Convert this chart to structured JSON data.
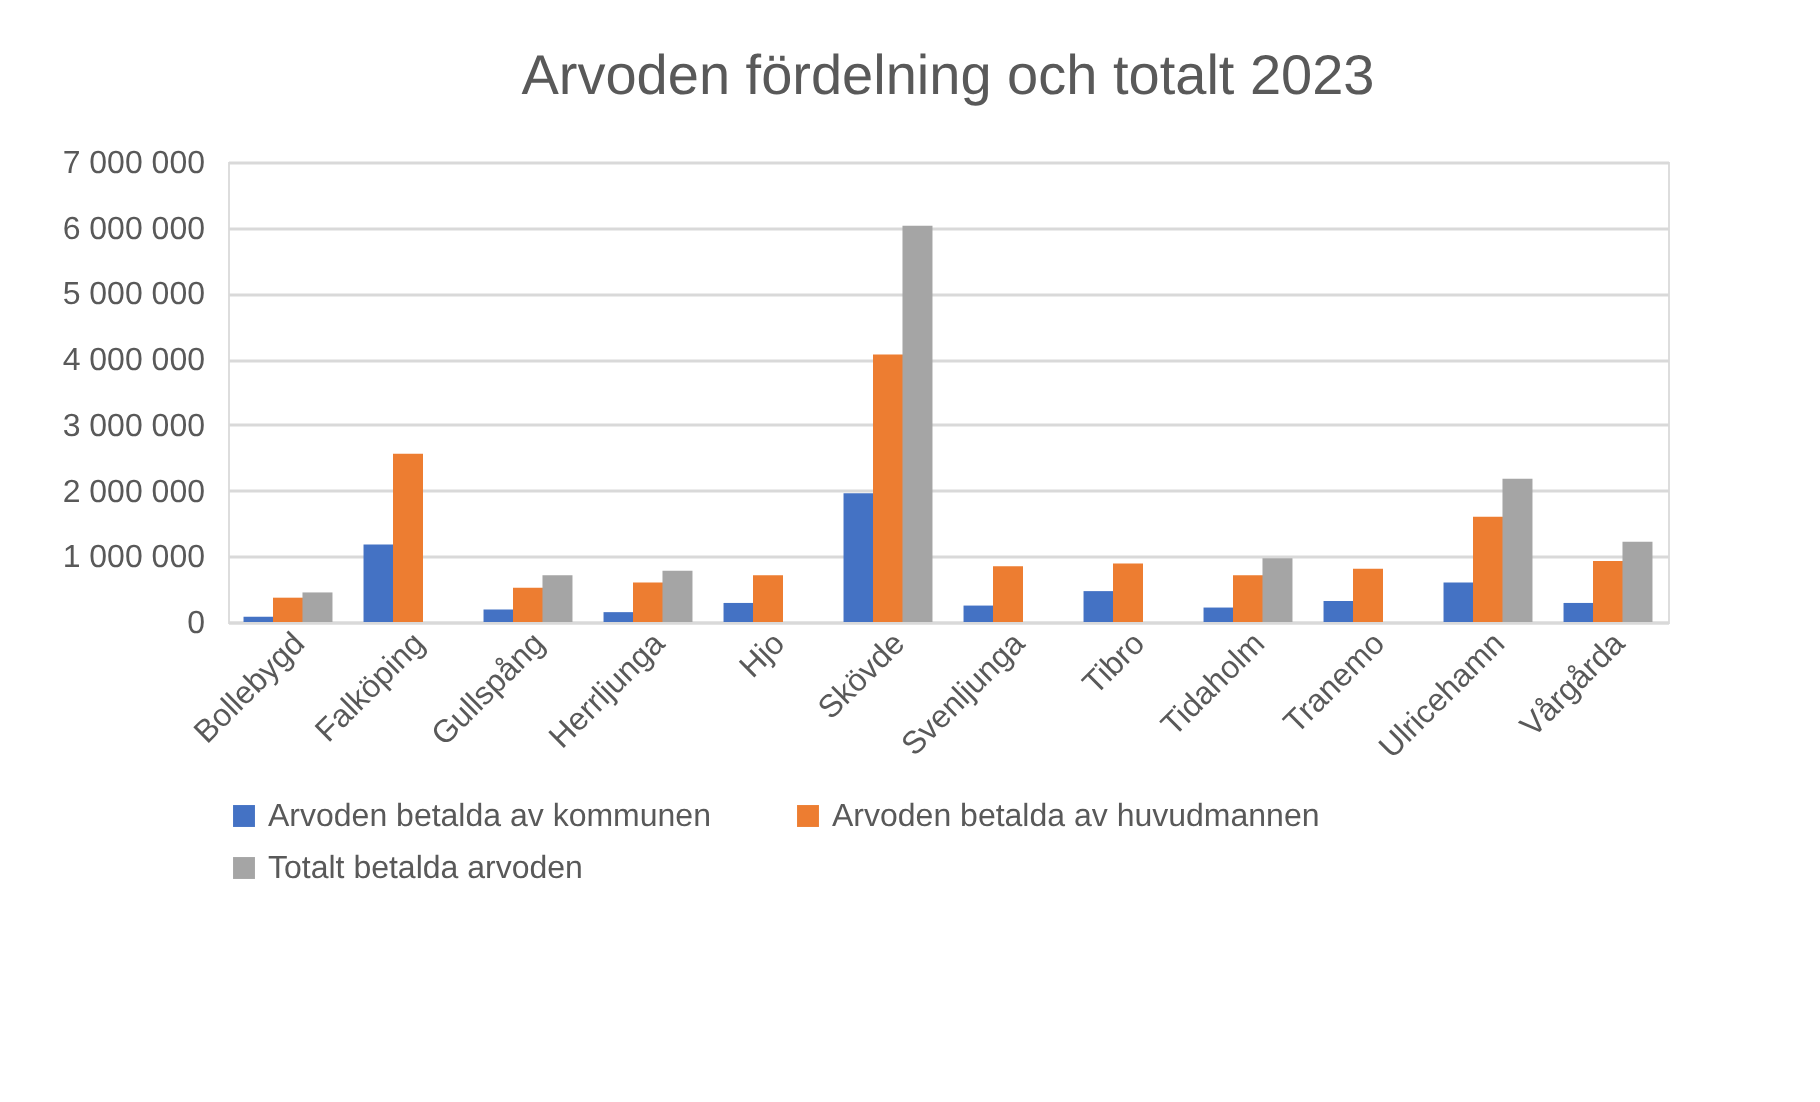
{
  "chart_data": {
    "type": "bar",
    "title": "Arvoden fördelning och totalt 2023",
    "categories": [
      "Bollebygd",
      "Falköping",
      "Gullspång",
      "Herrljunga",
      "Hjo",
      "Skövde",
      "Svenljunga",
      "Tibro",
      "Tidaholm",
      "Tranemo",
      "Ulricehamn",
      "Vårgårda"
    ],
    "series": [
      {
        "name": "Arvoden betalda av kommunen",
        "color": "#4472c4",
        "values": [
          80000,
          1180000,
          190000,
          150000,
          290000,
          1960000,
          250000,
          470000,
          220000,
          320000,
          600000,
          290000
        ]
      },
      {
        "name": "Arvoden betalda av huvudmannen",
        "color": "#ed7d31",
        "values": [
          370000,
          2560000,
          520000,
          600000,
          710000,
          4070000,
          850000,
          890000,
          710000,
          810000,
          1600000,
          930000
        ]
      },
      {
        "name": "Totalt betalda arvoden",
        "color": "#a5a5a5",
        "values": [
          450000,
          null,
          710000,
          780000,
          null,
          6030000,
          null,
          null,
          970000,
          null,
          2180000,
          1220000
        ]
      }
    ],
    "ylim": [
      0,
      7000000
    ],
    "yticks": [
      {
        "value": 0,
        "label": "0"
      },
      {
        "value": 1000000,
        "label": "1 000 000"
      },
      {
        "value": 2000000,
        "label": "2 000 000"
      },
      {
        "value": 3000000,
        "label": "3 000 000"
      },
      {
        "value": 4000000,
        "label": "4 000 000"
      },
      {
        "value": 5000000,
        "label": "5 000 000"
      },
      {
        "value": 6000000,
        "label": "6 000 000"
      },
      {
        "value": 7000000,
        "label": "7 000 000"
      }
    ],
    "grid": "y",
    "legend": "bottom"
  }
}
